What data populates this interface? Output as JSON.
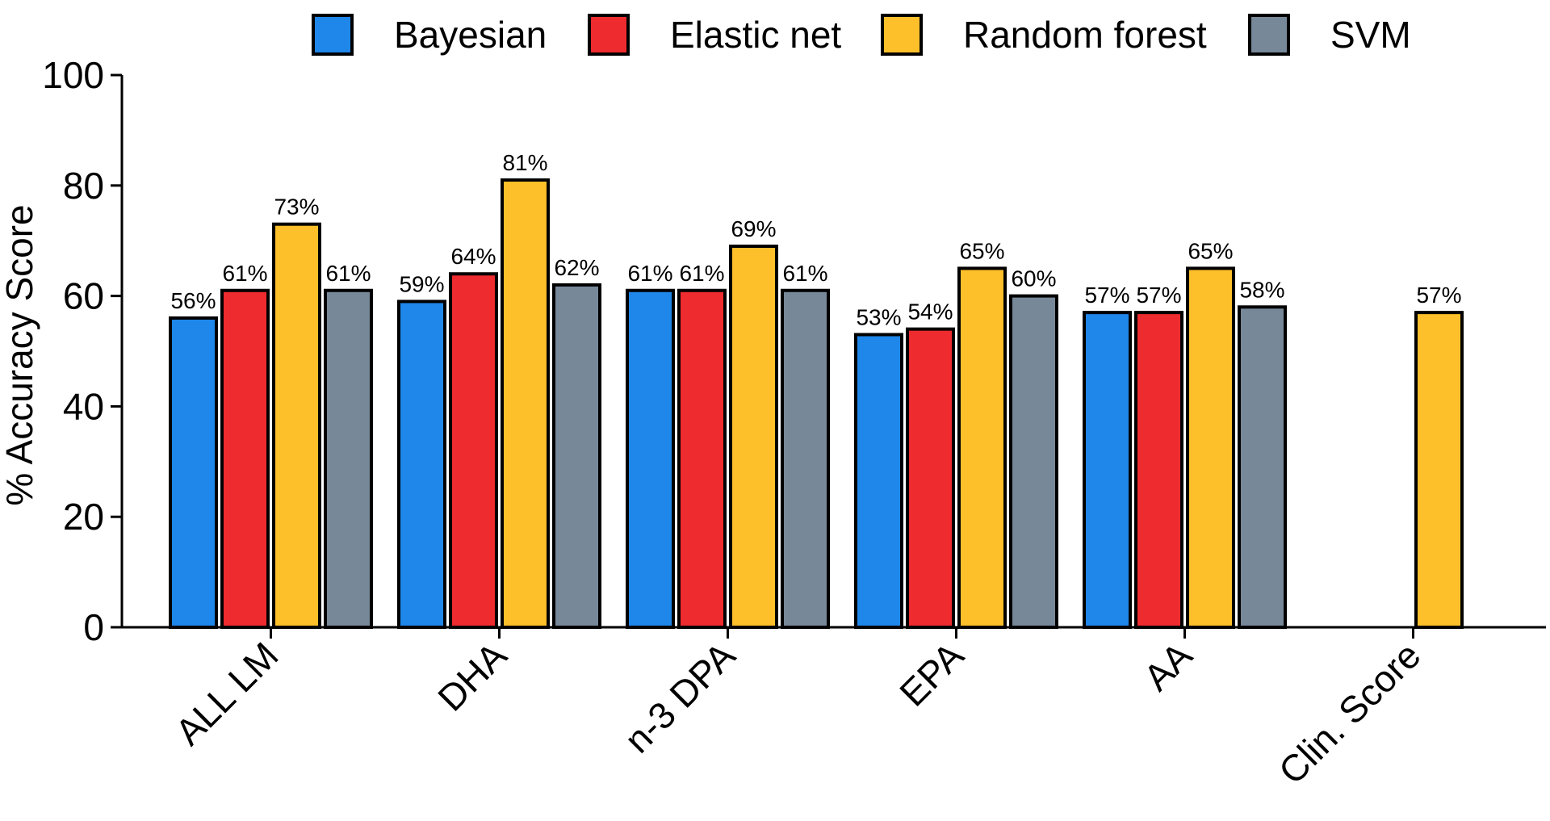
{
  "chart_data": {
    "type": "bar",
    "categories": [
      "ALL LM",
      "DHA",
      "n-3 DPA",
      "EPA",
      "AA",
      "Clin. Score"
    ],
    "series": [
      {
        "name": "Bayesian",
        "color": "#1f86ea",
        "values": [
          56,
          59,
          61,
          53,
          57,
          null
        ],
        "labels": [
          "56%",
          "59%",
          "61%",
          "53%",
          "57%",
          null
        ]
      },
      {
        "name": "Elastic net",
        "color": "#ee2b2f",
        "values": [
          61,
          64,
          61,
          54,
          57,
          null
        ],
        "labels": [
          "61%",
          "64%",
          "61%",
          "54%",
          "57%",
          null
        ]
      },
      {
        "name": "Random forest",
        "color": "#fdbf2a",
        "values": [
          73,
          81,
          69,
          65,
          65,
          57
        ],
        "labels": [
          "73%",
          "81%",
          "69%",
          "65%",
          "65%",
          "57%"
        ]
      },
      {
        "name": "SVM",
        "color": "#778899",
        "values": [
          61,
          62,
          61,
          60,
          58,
          null
        ],
        "labels": [
          "61%",
          "62%",
          "61%",
          "60%",
          "58%",
          null
        ]
      }
    ],
    "title": "",
    "xlabel": "",
    "ylabel": "% Accuracy Score",
    "ylim": [
      0,
      100
    ],
    "yticks": [
      "0",
      "20",
      "40",
      "60",
      "80",
      "100"
    ],
    "ytick_values": [
      0,
      20,
      40,
      60,
      80,
      100
    ],
    "legend_position": "top",
    "grid": false
  }
}
